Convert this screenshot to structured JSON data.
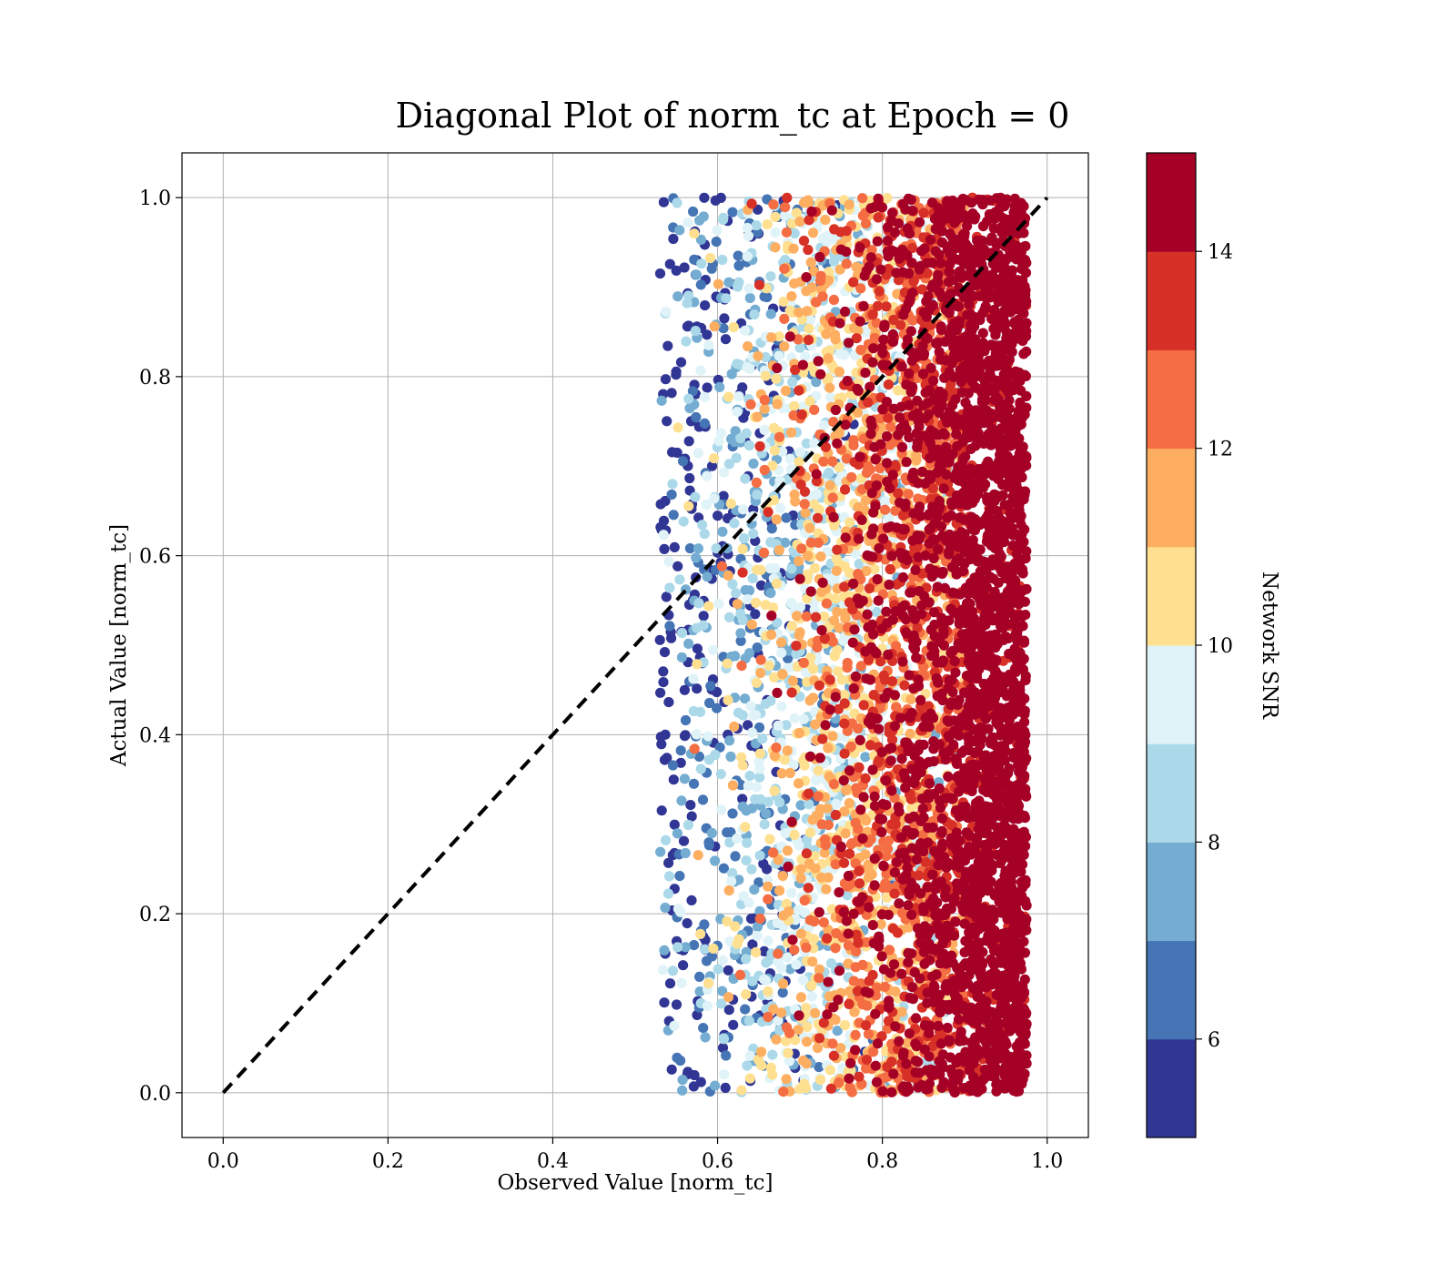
{
  "chart_data": {
    "type": "scatter",
    "title": "Diagonal Plot of norm_tc at Epoch = 0",
    "xlabel": "Observed Value [norm_tc]",
    "ylabel": "Actual Value [norm_tc]",
    "xlim": [
      -0.05,
      1.05
    ],
    "ylim": [
      -0.05,
      1.05
    ],
    "x_ticks": [
      "0.0",
      "0.2",
      "0.4",
      "0.6",
      "0.8",
      "1.0"
    ],
    "y_ticks": [
      "0.0",
      "0.2",
      "0.4",
      "0.6",
      "0.8",
      "1.0"
    ],
    "grid": true,
    "reference_line": {
      "x": [
        0.0,
        1.0
      ],
      "y": [
        0.0,
        1.0
      ],
      "style": "dashed",
      "color": "#000000"
    },
    "point_cloud": {
      "x_range": [
        0.53,
        0.975
      ],
      "y_range": [
        0.0,
        1.0
      ],
      "snr_trend": "Network SNR increases with observed value; dark red dominates above 0.87"
    },
    "colorbar": {
      "label": "Network SNR",
      "range": [
        5,
        15
      ],
      "ticks": [
        "6",
        "8",
        "10",
        "12",
        "14"
      ],
      "bins": [
        {
          "from": 5,
          "to": 6,
          "color": "#313695"
        },
        {
          "from": 6,
          "to": 7,
          "color": "#4575b4"
        },
        {
          "from": 7,
          "to": 8,
          "color": "#74add1"
        },
        {
          "from": 8,
          "to": 9,
          "color": "#abd9e9"
        },
        {
          "from": 9,
          "to": 10,
          "color": "#e0f3f8"
        },
        {
          "from": 10,
          "to": 11,
          "color": "#fee090"
        },
        {
          "from": 11,
          "to": 12,
          "color": "#fdae61"
        },
        {
          "from": 12,
          "to": 13,
          "color": "#f46d43"
        },
        {
          "from": 13,
          "to": 14,
          "color": "#d73027"
        },
        {
          "from": 14,
          "to": 15,
          "color": "#a50026"
        }
      ]
    }
  }
}
